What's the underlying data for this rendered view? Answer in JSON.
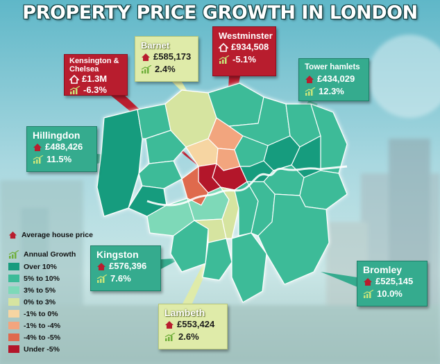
{
  "title": "PROPERTY PRICE GROWTH IN LONDON",
  "colors": {
    "over_10": "#189c7e",
    "5_to_10": "#3cbb98",
    "3_to_5": "#7ed9b8",
    "0_to_3": "#d6e4a0",
    "neg1_to_0": "#f6d5a2",
    "neg1_to_neg4": "#f2a57e",
    "neg4_to_neg5": "#df6a4e",
    "under_neg5": "#b3152a"
  },
  "callouts": [
    {
      "id": "westminster",
      "name": "Westminster",
      "price": "£934,508",
      "growth": "-5.1%",
      "style": "red"
    },
    {
      "id": "kensington",
      "name": "Kensington &\nChelsea",
      "price": "£1.3M",
      "growth": "-6.3%",
      "style": "red"
    },
    {
      "id": "barnet",
      "name": "Barnet",
      "price": "£585,173",
      "growth": "2.4%",
      "style": "light"
    },
    {
      "id": "tower",
      "name": "Tower hamlets",
      "price": "£434,029",
      "growth": "12.3%",
      "style": "green"
    },
    {
      "id": "hillingdon",
      "name": "Hillingdon",
      "price": "£488,426",
      "growth": "11.5%",
      "style": "green"
    },
    {
      "id": "kingston",
      "name": "Kingston",
      "price": "£576,396",
      "growth": "7.6%",
      "style": "green"
    },
    {
      "id": "lambeth",
      "name": "Lambeth",
      "price": "£553,424",
      "growth": "2.6%",
      "style": "light"
    },
    {
      "id": "bromley",
      "name": "Bromley",
      "price": "£525,145",
      "growth": "10.0%",
      "style": "green"
    }
  ],
  "legend": {
    "price_label": "Average house price",
    "growth_label": "Annual Growth",
    "bins": [
      {
        "label": "Over 10%",
        "color": "#189c7e"
      },
      {
        "label": "5% to 10%",
        "color": "#3cbb98"
      },
      {
        "label": "3% to 5%",
        "color": "#7ed9b8"
      },
      {
        "label": "0% to 3%",
        "color": "#d6e4a0"
      },
      {
        "label": "-1% to 0%",
        "color": "#f6d5a2"
      },
      {
        "label": "-1% to -4%",
        "color": "#f2a57e"
      },
      {
        "label": "-4% to -5%",
        "color": "#df6a4e"
      },
      {
        "label": "Under -5%",
        "color": "#b3152a"
      }
    ]
  }
}
